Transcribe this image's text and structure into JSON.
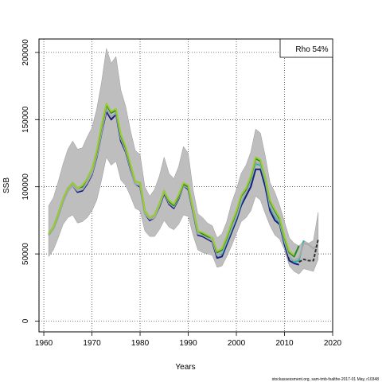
{
  "chart_data": {
    "type": "line",
    "title": "",
    "xlabel": "Years",
    "ylabel": "SSB",
    "xlim": [
      1959,
      2020
    ],
    "ylim": [
      -8000,
      210000
    ],
    "x_ticks": [
      1960,
      1970,
      1980,
      1990,
      2000,
      2010,
      2020
    ],
    "y_ticks": [
      0,
      50000,
      100000,
      150000,
      200000
    ],
    "grid": true,
    "annotation": "Rho 54%",
    "footer": "stockassessment.org, sam-tmb-fsalthe-2017-01 May, r10348",
    "confidence_band": {
      "x": [
        1961,
        1962,
        1963,
        1964,
        1965,
        1966,
        1967,
        1968,
        1969,
        1970,
        1971,
        1972,
        1973,
        1974,
        1975,
        1976,
        1977,
        1978,
        1979,
        1980,
        1981,
        1982,
        1983,
        1984,
        1985,
        1986,
        1987,
        1988,
        1989,
        1990,
        1991,
        1992,
        1993,
        1994,
        1995,
        1996,
        1997,
        1998,
        1999,
        2000,
        2001,
        2002,
        2003,
        2004,
        2005,
        2006,
        2007,
        2008,
        2009,
        2010,
        2011,
        2012,
        2013,
        2014,
        2015,
        2016,
        2017
      ],
      "upper": [
        86000,
        92000,
        104000,
        117000,
        128000,
        134000,
        128000,
        129000,
        137000,
        144000,
        158000,
        178000,
        203000,
        192000,
        197000,
        172000,
        160000,
        142000,
        127000,
        124000,
        100000,
        93000,
        98000,
        108000,
        122000,
        110000,
        106000,
        115000,
        130000,
        125000,
        98000,
        80000,
        77000,
        73000,
        71000,
        62000,
        65000,
        74000,
        88000,
        98000,
        110000,
        116000,
        126000,
        143000,
        140000,
        123000,
        103000,
        96000,
        86000,
        74000,
        62000,
        58000,
        56000,
        60000,
        58000,
        60000,
        81000
      ],
      "lower": [
        48000,
        53000,
        62000,
        72000,
        77000,
        79000,
        73000,
        74000,
        77000,
        82000,
        90000,
        105000,
        122000,
        116000,
        119000,
        105000,
        101000,
        93000,
        84000,
        82000,
        67000,
        63000,
        63000,
        68000,
        75000,
        70000,
        68000,
        72000,
        79000,
        78000,
        64000,
        53000,
        51000,
        50000,
        49000,
        40000,
        41000,
        48000,
        56000,
        65000,
        74000,
        77000,
        82000,
        93000,
        90000,
        80000,
        71000,
        64000,
        61000,
        53000,
        41000,
        37000,
        35000,
        39000,
        38000,
        37000,
        46000
      ]
    },
    "series": [
      {
        "color": "#1a1a80",
        "x": [
          1961,
          1962,
          1963,
          1964,
          1965,
          1966,
          1967,
          1968,
          1969,
          1970,
          1971,
          1972,
          1973,
          1974,
          1975,
          1976,
          1977,
          1978,
          1979,
          1980,
          1981,
          1982,
          1983,
          1984,
          1985,
          1986,
          1987,
          1988,
          1989,
          1990,
          1991,
          1992,
          1993,
          1994,
          1995,
          1996,
          1997,
          1998,
          1999,
          2000,
          2001,
          2002,
          2003,
          2004,
          2005,
          2006,
          2007,
          2008,
          2009,
          2010,
          2011,
          2012,
          2013
        ],
        "values": [
          64000,
          69000,
          78000,
          89000,
          97000,
          101000,
          96000,
          97000,
          102000,
          109000,
          122000,
          140000,
          156000,
          150000,
          154000,
          134000,
          126000,
          113000,
          102000,
          100000,
          80000,
          75000,
          77000,
          85000,
          95000,
          87000,
          84000,
          91000,
          101000,
          98000,
          81000,
          64000,
          63000,
          61000,
          59000,
          47000,
          48000,
          57000,
          66000,
          75000,
          86000,
          93000,
          100000,
          113000,
          113000,
          100000,
          82000,
          75000,
          72000,
          57000,
          45000,
          43000,
          42000
        ]
      },
      {
        "color": "#20b2aa",
        "x": [
          1961,
          1962,
          1963,
          1964,
          1965,
          1966,
          1967,
          1968,
          1969,
          1970,
          1971,
          1972,
          1973,
          1974,
          1975,
          1976,
          1977,
          1978,
          1979,
          1980,
          1981,
          1982,
          1983,
          1984,
          1985,
          1986,
          1987,
          1988,
          1989,
          1990,
          1991,
          1992,
          1993,
          1994,
          1995,
          1996,
          1997,
          1998,
          1999,
          2000,
          2001,
          2002,
          2003,
          2004,
          2005,
          2006,
          2007,
          2008,
          2009,
          2010,
          2011,
          2012,
          2013,
          2014
        ],
        "values": [
          64000,
          69000,
          78000,
          89000,
          97000,
          101000,
          97000,
          98000,
          103000,
          110000,
          123000,
          141000,
          158000,
          152000,
          155000,
          136000,
          127000,
          114000,
          102000,
          101000,
          80000,
          76000,
          77000,
          86000,
          96000,
          88000,
          85000,
          92000,
          101000,
          99000,
          82000,
          65000,
          64000,
          62000,
          60000,
          49000,
          50000,
          59000,
          68000,
          77000,
          88000,
          96000,
          104000,
          117000,
          116000,
          104000,
          85000,
          78000,
          73000,
          59000,
          48000,
          44000,
          45000,
          60000
        ]
      },
      {
        "color": "#a9a9a9",
        "x": [
          1961,
          1962,
          1963,
          1964,
          1965,
          1966,
          1967,
          1968,
          1969,
          1970,
          1971,
          1972,
          1973,
          1974,
          1975,
          1976,
          1977,
          1978,
          1979,
          1980,
          1981,
          1982,
          1983,
          1984,
          1985,
          1986,
          1987,
          1988,
          1989,
          1990,
          1991,
          1992,
          1993,
          1994,
          1995,
          1996,
          1997,
          1998,
          1999,
          2000,
          2001,
          2002,
          2003,
          2004,
          2005,
          2006,
          2007,
          2008,
          2009,
          2010,
          2011,
          2012,
          2013,
          2014,
          2015,
          2016,
          2017
        ],
        "values": [
          64000,
          69000,
          78000,
          89000,
          97000,
          101000,
          97000,
          98000,
          103000,
          110000,
          123000,
          141000,
          158000,
          152000,
          155000,
          136000,
          127000,
          114000,
          102000,
          101000,
          80000,
          76000,
          77000,
          86000,
          96000,
          88000,
          85000,
          92000,
          101000,
          99000,
          82000,
          65000,
          64000,
          62000,
          60000,
          49000,
          51000,
          60000,
          69000,
          78000,
          89000,
          96000,
          105000,
          118000,
          117000,
          105000,
          86000,
          79000,
          74000,
          60000,
          48000,
          45000,
          47000,
          58000,
          57000,
          54000,
          57000
        ]
      },
      {
        "color": "#228b22",
        "x": [
          1961,
          1962,
          1963,
          1964,
          1965,
          1966,
          1967,
          1968,
          1969,
          1970,
          1971,
          1972,
          1973,
          1974,
          1975,
          1976,
          1977,
          1978,
          1979,
          1980,
          1981,
          1982,
          1983,
          1984,
          1985,
          1986,
          1987,
          1988,
          1989,
          1990,
          1991,
          1992,
          1993,
          1994,
          1995,
          1996,
          1997,
          1998,
          1999,
          2000,
          2001,
          2002,
          2003,
          2004,
          2005,
          2006,
          2007,
          2008,
          2009,
          2010,
          2011,
          2012,
          2013
        ],
        "values": [
          65000,
          70000,
          80000,
          91000,
          99000,
          103000,
          99000,
          100000,
          106000,
          113000,
          126000,
          145000,
          161000,
          155000,
          157000,
          138000,
          129000,
          116000,
          104000,
          103000,
          82000,
          77000,
          79000,
          87000,
          97000,
          89000,
          86000,
          93000,
          102000,
          100000,
          84000,
          67000,
          65000,
          63000,
          62000,
          51000,
          53000,
          62000,
          72000,
          81000,
          93000,
          98000,
          107000,
          121000,
          119000,
          107000,
          89000,
          82000,
          76000,
          62000,
          51000,
          48000,
          56000
        ]
      },
      {
        "color": "#9acd32",
        "x": [
          1961,
          1962,
          1963,
          1964,
          1965,
          1966,
          1967,
          1968,
          1969,
          1970,
          1971,
          1972,
          1973,
          1974,
          1975,
          1976,
          1977,
          1978,
          1979,
          1980,
          1981,
          1982,
          1983,
          1984,
          1985,
          1986,
          1987,
          1988,
          1989,
          1990,
          1991,
          1992,
          1993,
          1994,
          1995,
          1996,
          1997,
          1998,
          1999,
          2000,
          2001,
          2002,
          2003,
          2004,
          2005,
          2006,
          2007,
          2008,
          2009,
          2010,
          2011,
          2012
        ],
        "values": [
          65000,
          70000,
          80000,
          91000,
          99000,
          103000,
          99000,
          101000,
          106000,
          113000,
          127000,
          146000,
          162000,
          156000,
          158000,
          139000,
          130000,
          117000,
          104000,
          103000,
          82000,
          77000,
          79000,
          87000,
          97000,
          90000,
          87000,
          94000,
          103000,
          101000,
          84000,
          67000,
          66000,
          64000,
          62000,
          52000,
          54000,
          63000,
          73000,
          82000,
          94000,
          99000,
          108000,
          122000,
          120000,
          107000,
          90000,
          83000,
          77000,
          63000,
          52000,
          49000
        ]
      },
      {
        "color": "#333333",
        "dashed": true,
        "x": [
          2013,
          2014,
          2015,
          2016,
          2017
        ],
        "values": [
          44000,
          46000,
          45000,
          45000,
          61000
        ]
      }
    ]
  }
}
